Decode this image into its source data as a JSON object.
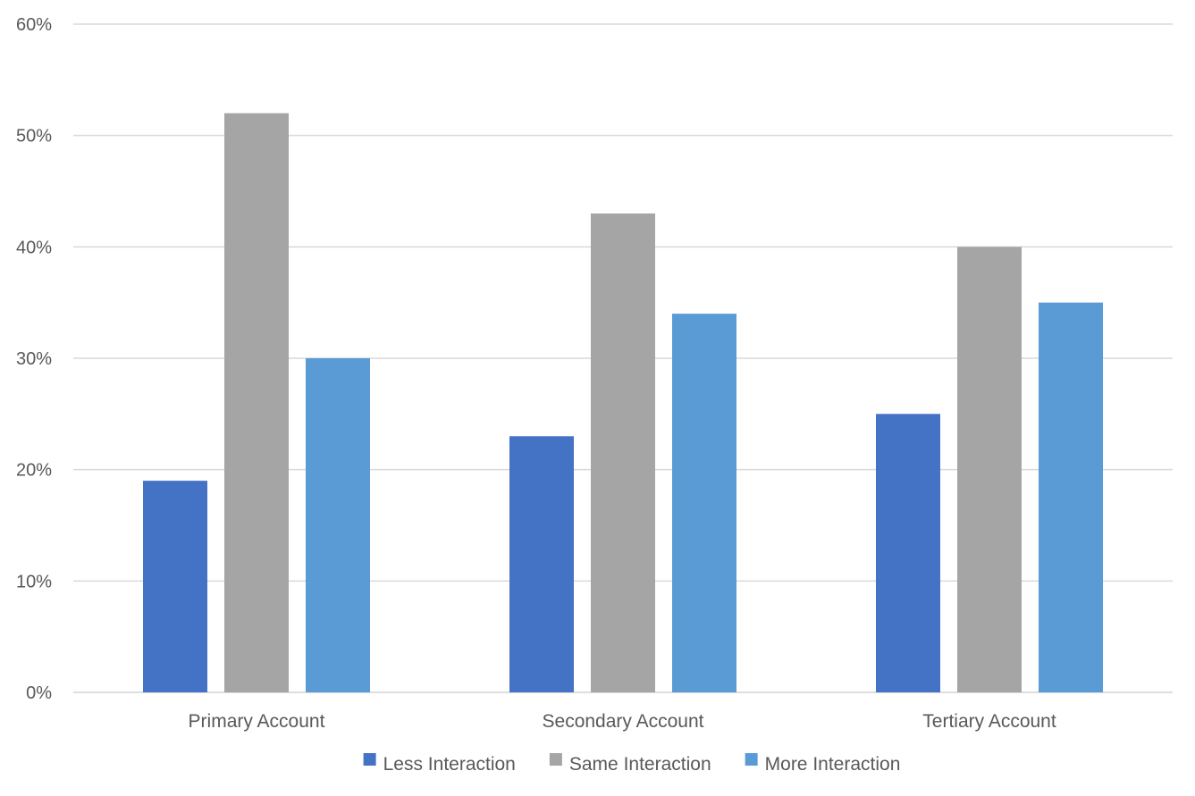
{
  "chart_data": {
    "type": "bar",
    "title": "",
    "xlabel": "",
    "ylabel": "",
    "categories": [
      "Primary Account",
      "Secondary Account",
      "Tertiary Account"
    ],
    "series": [
      {
        "name": "Less Interaction",
        "color": "#4472C4",
        "values": [
          19,
          23,
          25
        ]
      },
      {
        "name": "Same Interaction",
        "color": "#A5A5A5",
        "values": [
          52,
          43,
          40
        ]
      },
      {
        "name": "More Interaction",
        "color": "#5B9BD5",
        "values": [
          30,
          34,
          35
        ]
      }
    ],
    "ylim": [
      0,
      60
    ],
    "yticks": [
      "0%",
      "10%",
      "20%",
      "30%",
      "40%",
      "50%",
      "60%"
    ],
    "grid": true,
    "legend_position": "bottom"
  },
  "colors": {
    "gridline": "#D9D9D9",
    "axis_text": "#595959"
  }
}
